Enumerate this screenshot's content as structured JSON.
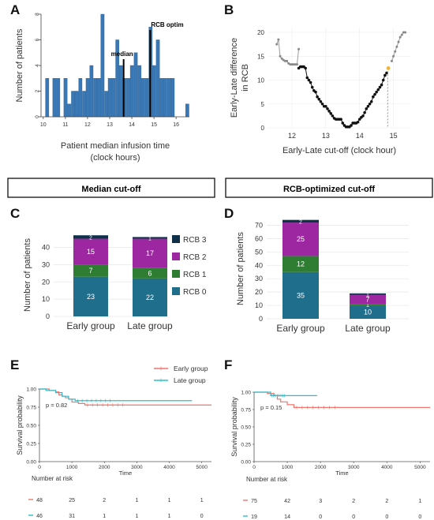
{
  "panel_letters": [
    "A",
    "B",
    "C",
    "D",
    "E",
    "F"
  ],
  "section_titles": {
    "median": "Median cut-off",
    "rcb": "RCB-optimized  cut-off"
  },
  "colors": {
    "hist_bar": "#3a78b5",
    "rcb0": "#1f6e8c",
    "rcb1": "#2e7d32",
    "rcb2": "#9c27a0",
    "rcb3": "#10304a",
    "early": "#f0746e",
    "late": "#2bbfc9",
    "dot_dark": "#111111",
    "dot_grey": "#888888",
    "dot_optimal": "#f2b233"
  },
  "chart_data": [
    {
      "id": "A",
      "type": "bar",
      "xlabel": "Patient median infusion time",
      "xlabel2": "(clock hours)",
      "ylabel": "Number of patients",
      "xticks": [
        "10",
        "11",
        "12",
        "13",
        "14",
        "15",
        "16"
      ],
      "yticks": [
        "0",
        "2",
        "4",
        "6",
        "8"
      ],
      "xlim": [
        9.9,
        16.6
      ],
      "ylim": [
        0,
        8
      ],
      "bin_width": 0.167,
      "x": [
        10.1,
        10.27,
        10.43,
        10.6,
        10.77,
        10.93,
        11.1,
        11.27,
        11.43,
        11.6,
        11.77,
        11.93,
        12.1,
        12.27,
        12.43,
        12.6,
        12.77,
        12.93,
        13.1,
        13.27,
        13.43,
        13.6,
        13.77,
        13.93,
        14.1,
        14.27,
        14.43,
        14.6,
        14.77,
        14.93,
        15.1,
        15.27,
        15.43,
        15.6,
        15.77,
        15.93,
        16.1,
        16.27,
        16.43
      ],
      "values": [
        3,
        0,
        3,
        3,
        0,
        3,
        1,
        2,
        2,
        3,
        2,
        3,
        4,
        3,
        3,
        8,
        2,
        3,
        3,
        6,
        4,
        3,
        3,
        4,
        5,
        4,
        3,
        3,
        7,
        4,
        6,
        3,
        3,
        3,
        3,
        0,
        0,
        0,
        1
      ],
      "lines": [
        {
          "label": "median",
          "x": 13.63
        },
        {
          "label": "RCB optim",
          "x": 14.83
        }
      ]
    },
    {
      "id": "B",
      "type": "scatter",
      "xlabel": "Early-Late cut-off (clock hour)",
      "ylabel": "Early-Late difference",
      "ylabel2": "in RCB",
      "xticks": [
        "12",
        "13",
        "14",
        "15"
      ],
      "yticks": [
        "0",
        "5",
        "10",
        "15",
        "20"
      ],
      "xlim": [
        11.3,
        15.5
      ],
      "ylim": [
        0,
        21
      ],
      "grey_points": [
        [
          11.55,
          17.5
        ],
        [
          11.6,
          18.5
        ],
        [
          11.65,
          15
        ],
        [
          11.7,
          14.5
        ],
        [
          11.75,
          14.2
        ],
        [
          11.8,
          14
        ],
        [
          11.85,
          14
        ],
        [
          11.9,
          13.5
        ],
        [
          11.95,
          13.3
        ],
        [
          12.0,
          13.3
        ],
        [
          12.05,
          13.3
        ],
        [
          12.1,
          13.3
        ],
        [
          12.15,
          13.3
        ],
        [
          12.2,
          16.5
        ],
        [
          14.95,
          14
        ],
        [
          15.0,
          15
        ],
        [
          15.05,
          16
        ],
        [
          15.1,
          17
        ],
        [
          15.15,
          18
        ],
        [
          15.2,
          19
        ],
        [
          15.25,
          19.5
        ],
        [
          15.3,
          20
        ],
        [
          15.35,
          20
        ]
      ],
      "dark_points": [
        [
          12.2,
          12.5
        ],
        [
          12.25,
          12.8
        ],
        [
          12.3,
          12.8
        ],
        [
          12.35,
          12.8
        ],
        [
          12.4,
          12.5
        ],
        [
          12.45,
          10.5
        ],
        [
          12.5,
          10
        ],
        [
          12.55,
          9.5
        ],
        [
          12.6,
          8.5
        ],
        [
          12.65,
          7.8
        ],
        [
          12.7,
          7.5
        ],
        [
          12.75,
          6.5
        ],
        [
          12.8,
          6
        ],
        [
          12.85,
          5.5
        ],
        [
          12.9,
          5
        ],
        [
          12.95,
          4.5
        ],
        [
          13.0,
          4.5
        ],
        [
          13.05,
          4
        ],
        [
          13.1,
          3.5
        ],
        [
          13.15,
          3
        ],
        [
          13.2,
          2.5
        ],
        [
          13.25,
          2
        ],
        [
          13.3,
          1.8
        ],
        [
          13.35,
          1.8
        ],
        [
          13.4,
          1.8
        ],
        [
          13.45,
          1.8
        ],
        [
          13.5,
          1
        ],
        [
          13.55,
          0.5
        ],
        [
          13.6,
          0.2
        ],
        [
          13.65,
          0.2
        ],
        [
          13.7,
          0.2
        ],
        [
          13.75,
          0.5
        ],
        [
          13.8,
          1
        ],
        [
          13.85,
          1
        ],
        [
          13.9,
          1
        ],
        [
          13.95,
          1.2
        ],
        [
          14.0,
          1.8
        ],
        [
          14.05,
          2.2
        ],
        [
          14.1,
          2.5
        ],
        [
          14.15,
          3.2
        ],
        [
          14.2,
          4
        ],
        [
          14.25,
          4.5
        ],
        [
          14.3,
          5
        ],
        [
          14.35,
          5.5
        ],
        [
          14.4,
          6.5
        ],
        [
          14.45,
          7
        ],
        [
          14.5,
          7.5
        ],
        [
          14.55,
          8
        ],
        [
          14.6,
          8.5
        ],
        [
          14.65,
          9
        ],
        [
          14.7,
          10
        ],
        [
          14.75,
          11
        ],
        [
          14.8,
          11.5
        ]
      ],
      "optimal_point": [
        14.85,
        12.5
      ],
      "vline": 14.83
    },
    {
      "id": "C",
      "type": "bar",
      "stacked": true,
      "ylabel": "Number of patients",
      "categories": [
        "Early group",
        "Late group"
      ],
      "yticks": [
        "0",
        "10",
        "20",
        "30",
        "40"
      ],
      "ylim": [
        0,
        48
      ],
      "legend": [
        "RCB 3",
        "RCB 2",
        "RCB 1",
        "RCB 0"
      ],
      "series": [
        {
          "name": "RCB 0",
          "values": [
            23,
            22
          ],
          "labels": [
            "23",
            "22"
          ]
        },
        {
          "name": "RCB 1",
          "values": [
            7,
            6
          ],
          "labels": [
            "7",
            "6"
          ]
        },
        {
          "name": "RCB 2",
          "values": [
            15,
            17
          ],
          "labels": [
            "15",
            "17"
          ]
        },
        {
          "name": "RCB 3",
          "values": [
            2,
            1
          ],
          "labels": [
            "2",
            "1"
          ]
        }
      ]
    },
    {
      "id": "D",
      "type": "bar",
      "stacked": true,
      "ylabel": "Number of patients",
      "categories": [
        "Early group",
        "Late group"
      ],
      "yticks": [
        "0",
        "10",
        "20",
        "30",
        "40",
        "50",
        "60",
        "70"
      ],
      "ylim": [
        0,
        75
      ],
      "series": [
        {
          "name": "RCB 0",
          "values": [
            35,
            10
          ],
          "labels": [
            "35",
            "10"
          ]
        },
        {
          "name": "RCB 1",
          "values": [
            12,
            1
          ],
          "labels": [
            "12",
            "1"
          ]
        },
        {
          "name": "RCB 2",
          "values": [
            25,
            7
          ],
          "labels": [
            "25",
            "7"
          ]
        },
        {
          "name": "RCB 3",
          "values": [
            2,
            1
          ],
          "labels": [
            "2",
            "1"
          ]
        }
      ]
    },
    {
      "id": "E",
      "type": "line",
      "ylabel": "Survival probability",
      "xlabel": "Time",
      "pvalue": "p = 0.82",
      "legend": [
        "Early group",
        "Late group"
      ],
      "xticks": [
        "0",
        "1000",
        "2000",
        "3000",
        "4000",
        "5000"
      ],
      "yticks": [
        "0.00",
        "0.25",
        "0.50",
        "0.75",
        "1.00"
      ],
      "xlim": [
        0,
        5300
      ],
      "ylim": [
        0,
        1
      ],
      "series": [
        {
          "name": "Early group",
          "steps": [
            [
              0,
              1
            ],
            [
              300,
              0.98
            ],
            [
              500,
              0.96
            ],
            [
              600,
              0.92
            ],
            [
              700,
              0.9
            ],
            [
              800,
              0.88
            ],
            [
              900,
              0.86
            ],
            [
              1000,
              0.82
            ],
            [
              1200,
              0.8
            ],
            [
              1400,
              0.78
            ],
            [
              5300,
              0.78
            ]
          ]
        },
        {
          "name": "Late group",
          "steps": [
            [
              0,
              1
            ],
            [
              200,
              0.98
            ],
            [
              500,
              0.95
            ],
            [
              700,
              0.9
            ],
            [
              900,
              0.86
            ],
            [
              1100,
              0.84
            ],
            [
              4700,
              0.84
            ]
          ]
        }
      ],
      "risk_title": "Number at risk",
      "risk": [
        [
          "48",
          "25",
          "2",
          "1",
          "1",
          "1"
        ],
        [
          "46",
          "31",
          "1",
          "1",
          "1",
          "0"
        ]
      ]
    },
    {
      "id": "F",
      "type": "line",
      "ylabel": "Survival probability",
      "xlabel": "Time",
      "pvalue": "p = 0.15",
      "xticks": [
        "0",
        "1000",
        "2000",
        "3000",
        "4000",
        "5000"
      ],
      "yticks": [
        "0.00",
        "0.25",
        "0.50",
        "0.75",
        "1.00"
      ],
      "xlim": [
        0,
        5300
      ],
      "ylim": [
        0,
        1
      ],
      "series": [
        {
          "name": "Early group",
          "steps": [
            [
              0,
              1
            ],
            [
              400,
              0.98
            ],
            [
              600,
              0.95
            ],
            [
              700,
              0.9
            ],
            [
              800,
              0.86
            ],
            [
              1000,
              0.82
            ],
            [
              1200,
              0.78
            ],
            [
              5300,
              0.78
            ]
          ]
        },
        {
          "name": "Late group",
          "steps": [
            [
              0,
              1
            ],
            [
              500,
              0.95
            ],
            [
              1900,
              0.95
            ]
          ]
        }
      ],
      "risk_title": "Number at risk",
      "risk": [
        [
          "75",
          "42",
          "3",
          "2",
          "2",
          "1"
        ],
        [
          "19",
          "14",
          "0",
          "0",
          "0",
          "0"
        ]
      ]
    }
  ]
}
